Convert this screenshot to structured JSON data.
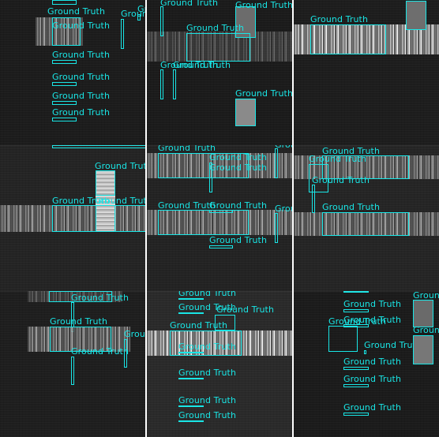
{
  "label_text": "Ground Truth",
  "box_color": "#19e6e6",
  "layout": {
    "columns": 3,
    "rows": 3,
    "panel_separator_color": "#ffffff"
  }
}
